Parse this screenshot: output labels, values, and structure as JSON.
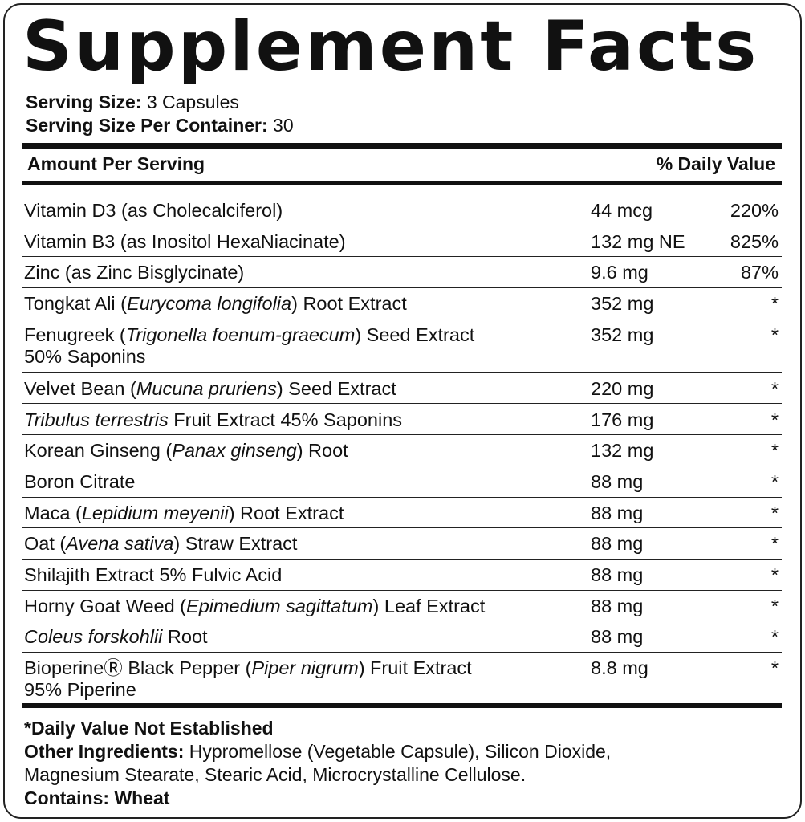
{
  "title": "Supplement Facts",
  "serving": [
    {
      "label": "Serving Size:",
      "value": "3 Capsules"
    },
    {
      "label": "Serving Size Per Container:",
      "value": "30"
    }
  ],
  "header": {
    "amount": "Amount Per Serving",
    "daily_value": "% Daily Value"
  },
  "rows": [
    {
      "name": [
        [
          "Vitamin D3 (as Cholecalciferol)"
        ]
      ],
      "amount": "44 mcg",
      "dv": "220%"
    },
    {
      "name": [
        [
          "Vitamin B3 (as Inositol HexaNiacinate)"
        ]
      ],
      "amount": "132 mg NE",
      "dv": "825%"
    },
    {
      "name": [
        [
          "Zinc (as Zinc Bisglycinate)"
        ]
      ],
      "amount": "9.6 mg",
      "dv": "87%"
    },
    {
      "name": [
        [
          "Tongkat Ali (",
          {
            "italic": "Eurycoma longifolia"
          },
          ") Root Extract"
        ]
      ],
      "amount": "352 mg",
      "dv": "*"
    },
    {
      "name": [
        [
          "Fenugreek (",
          {
            "italic": "Trigonella foenum-graecum"
          },
          ") Seed Extract"
        ],
        [
          "50% Saponins"
        ]
      ],
      "amount": "352 mg",
      "dv": "*"
    },
    {
      "name": [
        [
          "Velvet Bean (",
          {
            "italic": "Mucuna pruriens"
          },
          ") Seed Extract"
        ]
      ],
      "amount": "220 mg",
      "dv": "*"
    },
    {
      "name": [
        [
          {
            "italic": "Tribulus terrestris"
          },
          " Fruit Extract 45% Saponins"
        ]
      ],
      "amount": "176 mg",
      "dv": "*"
    },
    {
      "name": [
        [
          "Korean Ginseng (",
          {
            "italic": "Panax ginseng"
          },
          ") Root"
        ]
      ],
      "amount": "132 mg",
      "dv": "*"
    },
    {
      "name": [
        [
          "Boron Citrate"
        ]
      ],
      "amount": "88 mg",
      "dv": "*"
    },
    {
      "name": [
        [
          "Maca (",
          {
            "italic": "Lepidium meyenii"
          },
          ") Root Extract"
        ]
      ],
      "amount": "88 mg",
      "dv": "*"
    },
    {
      "name": [
        [
          "Oat (",
          {
            "italic": "Avena sativa"
          },
          ") Straw Extract"
        ]
      ],
      "amount": "88 mg",
      "dv": "*"
    },
    {
      "name": [
        [
          "Shilajith Extract 5% Fulvic Acid"
        ]
      ],
      "amount": "88 mg",
      "dv": "*"
    },
    {
      "name": [
        [
          "Horny Goat Weed (",
          {
            "italic": "Epimedium sagittatum"
          },
          ") Leaf Extract"
        ]
      ],
      "amount": "88 mg",
      "dv": "*"
    },
    {
      "name": [
        [
          {
            "italic": "Coleus forskohlii"
          },
          " Root"
        ]
      ],
      "amount": "88 mg",
      "dv": "*"
    },
    {
      "name": [
        [
          "BioperineⓇ Black Pepper (",
          {
            "italic": "Piper nigrum"
          },
          ") Fruit Extract"
        ],
        [
          "95% Piperine"
        ]
      ],
      "amount": "8.8 mg",
      "dv": "*"
    }
  ],
  "footer": {
    "note": "*Daily Value Not Established",
    "other_ingredients": {
      "label": "Other Ingredients:",
      "lines": [
        "Hypromellose (Vegetable Capsule), Silicon Dioxide,",
        "Magnesium Stearate, Stearic Acid, Microcrystalline Cellulose."
      ]
    },
    "contains": {
      "label": "Contains:",
      "value": "Wheat"
    }
  }
}
